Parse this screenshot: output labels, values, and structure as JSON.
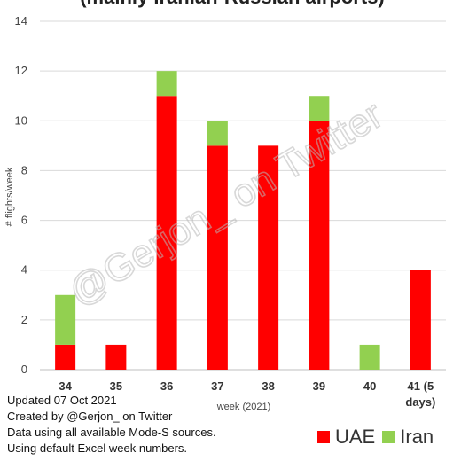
{
  "chart_data": {
    "type": "bar",
    "stacked": true,
    "title": "(mainly Iranian-Russian airports)",
    "xlabel": "week (2021)",
    "ylabel": "# flights/week",
    "ylim": [
      0,
      14
    ],
    "yticks": [
      0,
      2,
      4,
      6,
      8,
      10,
      12,
      14
    ],
    "grid": true,
    "categories": [
      "34",
      "35",
      "36",
      "37",
      "38",
      "39",
      "40",
      "41 (5 days)"
    ],
    "category_lines": [
      [
        "34"
      ],
      [
        "35"
      ],
      [
        "36"
      ],
      [
        "37"
      ],
      [
        "38"
      ],
      [
        "39"
      ],
      [
        "40"
      ],
      [
        "41 (5",
        "days)"
      ]
    ],
    "series": [
      {
        "name": "UAE",
        "color": "#ff0000",
        "values": [
          1,
          1,
          11,
          9,
          9,
          10,
          0,
          4
        ]
      },
      {
        "name": "Iran",
        "color": "#92d050",
        "values": [
          2,
          0,
          1,
          1,
          0,
          1,
          1,
          0
        ]
      }
    ],
    "legend_position": "bottom-right",
    "watermark": "@Gerjon_ on Twitter"
  },
  "notes": [
    "Updated 07 Oct 2021",
    "Created by @Gerjon_ on Twitter",
    "Data using all available Mode-S sources.",
    "Using default Excel week numbers."
  ]
}
